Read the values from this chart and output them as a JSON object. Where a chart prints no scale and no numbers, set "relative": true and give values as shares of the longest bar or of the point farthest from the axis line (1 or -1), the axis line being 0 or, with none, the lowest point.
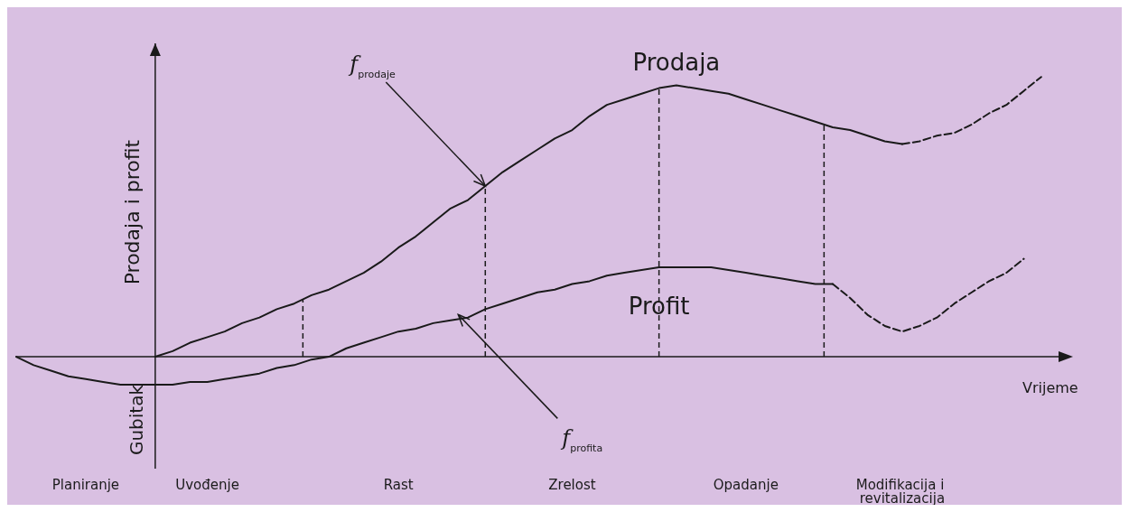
{
  "chart_data": {
    "type": "line",
    "relative": true,
    "xlabel": "Vrijeme",
    "ylabel": "Prodaja i profit",
    "marker": "none",
    "line_style": "solid",
    "categories": [
      null,
      null,
      null,
      null,
      "Planiranje",
      null,
      null,
      null,
      null,
      null,
      null,
      "Uvođenje",
      null,
      null,
      null,
      null,
      null,
      null,
      null,
      null,
      null,
      null,
      "Rast",
      null,
      null,
      null,
      null,
      null,
      null,
      null,
      null,
      null,
      "Zrelost",
      null,
      null,
      null,
      null,
      null,
      null,
      null,
      null,
      null,
      "Opadanje",
      null,
      null,
      null,
      null,
      null,
      null,
      null,
      null,
      "Modifikacija i revitalizacija",
      null,
      null,
      null,
      null,
      null,
      null,
      null,
      null,
      null
    ],
    "series": [
      {
        "name": "Prodaja",
        "color": "#1a1a1a",
        "values": [
          null,
          null,
          null,
          null,
          null,
          null,
          null,
          null,
          0,
          0.02,
          0.05,
          0.07,
          0.09,
          0.12,
          0.14,
          0.17,
          0.19,
          0.22,
          0.24,
          0.27,
          0.3,
          0.34,
          0.39,
          0.43,
          0.48,
          0.53,
          0.56,
          0.61,
          0.66,
          0.7,
          0.74,
          0.78,
          0.81,
          0.86,
          0.9,
          0.92,
          0.94,
          0.96,
          0.97,
          0.96,
          0.95,
          0.94,
          0.92,
          0.9,
          0.88,
          0.86,
          0.84,
          0.82,
          0.81,
          0.79,
          0.77,
          0.76,
          null,
          null,
          null,
          null,
          null,
          null,
          null,
          null,
          null
        ]
      },
      {
        "name": "Profit",
        "color": "#1a1a1a",
        "values": [
          0,
          -0.03,
          -0.05,
          -0.07,
          -0.08,
          -0.09,
          -0.1,
          -0.1,
          -0.1,
          -0.1,
          -0.09,
          -0.09,
          -0.08,
          -0.07,
          -0.06,
          -0.04,
          -0.03,
          -0.01,
          0,
          0.03,
          0.05,
          0.07,
          0.09,
          0.1,
          0.12,
          0.13,
          0.14,
          0.17,
          0.19,
          0.21,
          0.23,
          0.24,
          0.26,
          0.27,
          0.29,
          0.3,
          0.31,
          0.32,
          0.32,
          0.32,
          0.32,
          0.31,
          0.3,
          0.29,
          0.28,
          0.27,
          0.26,
          0.26,
          null,
          null,
          null,
          null,
          null,
          null,
          null,
          null,
          null,
          null,
          null,
          null,
          null
        ]
      },
      {
        "color": "#1a1a1a",
        "line_style": "dashed",
        "values": [
          null,
          null,
          null,
          null,
          null,
          null,
          null,
          null,
          null,
          null,
          null,
          null,
          null,
          null,
          null,
          null,
          null,
          null,
          null,
          null,
          null,
          null,
          null,
          null,
          null,
          null,
          null,
          null,
          null,
          null,
          null,
          null,
          null,
          null,
          null,
          null,
          null,
          null,
          null,
          null,
          null,
          null,
          null,
          null,
          null,
          null,
          null,
          null,
          null,
          null,
          null,
          0.76,
          0.77,
          0.79,
          0.8,
          0.83,
          0.87,
          0.9,
          0.95,
          1.0,
          null
        ]
      },
      {
        "color": "#1a1a1a",
        "line_style": "dashed",
        "values": [
          null,
          null,
          null,
          null,
          null,
          null,
          null,
          null,
          null,
          null,
          null,
          null,
          null,
          null,
          null,
          null,
          null,
          null,
          null,
          null,
          null,
          null,
          null,
          null,
          null,
          null,
          null,
          null,
          null,
          null,
          null,
          null,
          null,
          null,
          null,
          null,
          null,
          null,
          null,
          null,
          null,
          null,
          null,
          null,
          null,
          null,
          null,
          0.26,
          0.21,
          0.15,
          0.11,
          0.09,
          0.11,
          0.14,
          0.19,
          0.23,
          0.27,
          0.3,
          0.35,
          null,
          null
        ]
      }
    ],
    "annotations": [
      "f$_{prodaje}$",
      "f$_{profita}$",
      "Gubitak"
    ]
  }
}
